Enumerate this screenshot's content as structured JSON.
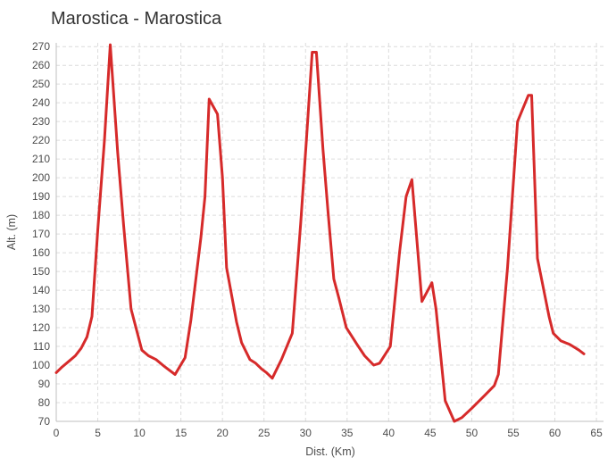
{
  "title": "Marostica - Marostica",
  "colors": {
    "line": "#d62a2a",
    "grid": "#dcdcdc",
    "axis": "#bfbfbf",
    "text": "#4d4d4d",
    "title_text": "#333333",
    "background": "#ffffff"
  },
  "chart_data": {
    "type": "line",
    "title": "Marostica - Marostica",
    "xlabel": "Dist. (Km)",
    "ylabel": "Alt. (m)",
    "xlim": [
      0,
      65.85
    ],
    "ylim": [
      70,
      272
    ],
    "x_ticks": [
      0,
      5,
      10,
      15,
      20,
      25,
      30,
      35,
      40,
      45,
      50,
      55,
      60,
      65
    ],
    "y_ticks": [
      70,
      80,
      90,
      100,
      110,
      120,
      130,
      140,
      150,
      160,
      170,
      180,
      190,
      200,
      210,
      220,
      230,
      240,
      250,
      260,
      270
    ],
    "grid": true,
    "legend": "none",
    "series": [
      {
        "name": "altitude-profile",
        "x": [
          0,
          0.7,
          1.5,
          2.3,
          3.0,
          3.7,
          4.3,
          5.0,
          5.8,
          6.5,
          7.4,
          8.1,
          9.0,
          10.3,
          11.1,
          12.0,
          13.1,
          14.3,
          15.5,
          16.2,
          16.8,
          17.4,
          17.9,
          18.4,
          19.4,
          20.0,
          20.5,
          21.7,
          22.3,
          23.3,
          24.0,
          24.7,
          25.3,
          26.0,
          27.1,
          28.4,
          29.4,
          30.1,
          30.8,
          31.3,
          32.1,
          32.7,
          33.4,
          34.0,
          34.9,
          36.2,
          37.1,
          38.2,
          38.9,
          40.2,
          41.3,
          42.1,
          42.8,
          44.0,
          45.2,
          45.7,
          46.8,
          47.9,
          48.8,
          50.0,
          51.6,
          52.7,
          53.2,
          54.3,
          55.5,
          56.8,
          57.2,
          57.9,
          58.8,
          59.3,
          59.8,
          60.7,
          61.8,
          62.9,
          63.5
        ],
        "y": [
          96,
          99,
          102,
          105,
          109,
          115,
          126,
          172,
          220,
          271,
          213,
          175,
          130,
          108,
          105,
          103,
          99,
          95,
          104,
          124,
          146,
          168,
          190,
          242,
          234,
          200,
          152,
          123,
          112,
          103,
          101,
          98,
          96,
          93,
          103,
          117,
          175,
          220,
          267,
          267,
          215,
          182,
          146,
          136,
          120,
          111,
          105,
          100,
          101,
          110,
          160,
          190,
          199,
          134,
          144,
          130,
          81,
          70,
          72,
          77,
          84,
          89,
          95,
          152,
          230,
          244,
          244,
          157,
          137,
          126,
          117,
          113,
          111,
          108,
          106
        ]
      }
    ]
  }
}
